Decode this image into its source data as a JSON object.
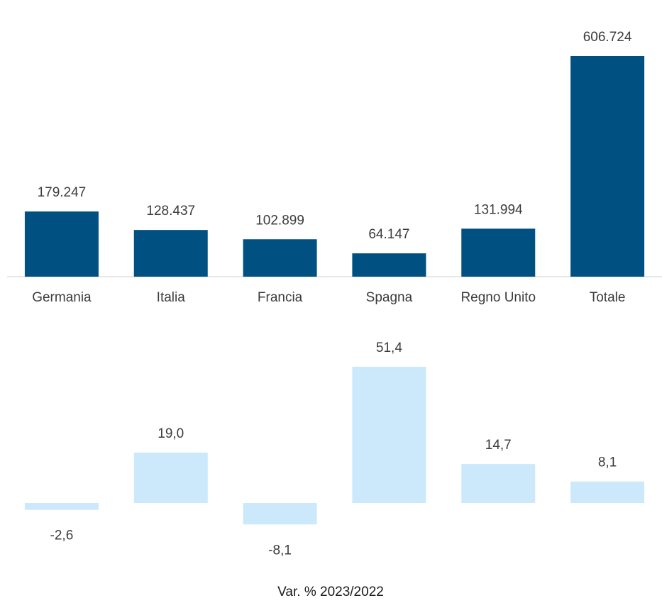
{
  "chart_data": [
    {
      "type": "bar",
      "categories": [
        "Germania",
        "Italia",
        "Francia",
        "Spagna",
        "Regno Unito",
        "Totale"
      ],
      "values": [
        179247,
        128437,
        102899,
        64147,
        131994,
        606724
      ],
      "data_labels": [
        "179.247",
        "128.437",
        "102.899",
        "64.147",
        "131.994",
        "606.724"
      ],
      "ylim": [
        0,
        606724
      ],
      "grid": false,
      "color": "#005082"
    },
    {
      "type": "bar",
      "categories": [
        "Germania",
        "Italia",
        "Francia",
        "Spagna",
        "Regno Unito",
        "Totale"
      ],
      "values": [
        -2.6,
        19.0,
        -8.1,
        51.4,
        14.7,
        8.1
      ],
      "data_labels": [
        "-2,6",
        "19,0",
        "-8,1",
        "51,4",
        "14,7",
        "8,1"
      ],
      "xlabel": "Var. %  2023/2022",
      "grid": false,
      "color": "#cce9fb"
    }
  ]
}
